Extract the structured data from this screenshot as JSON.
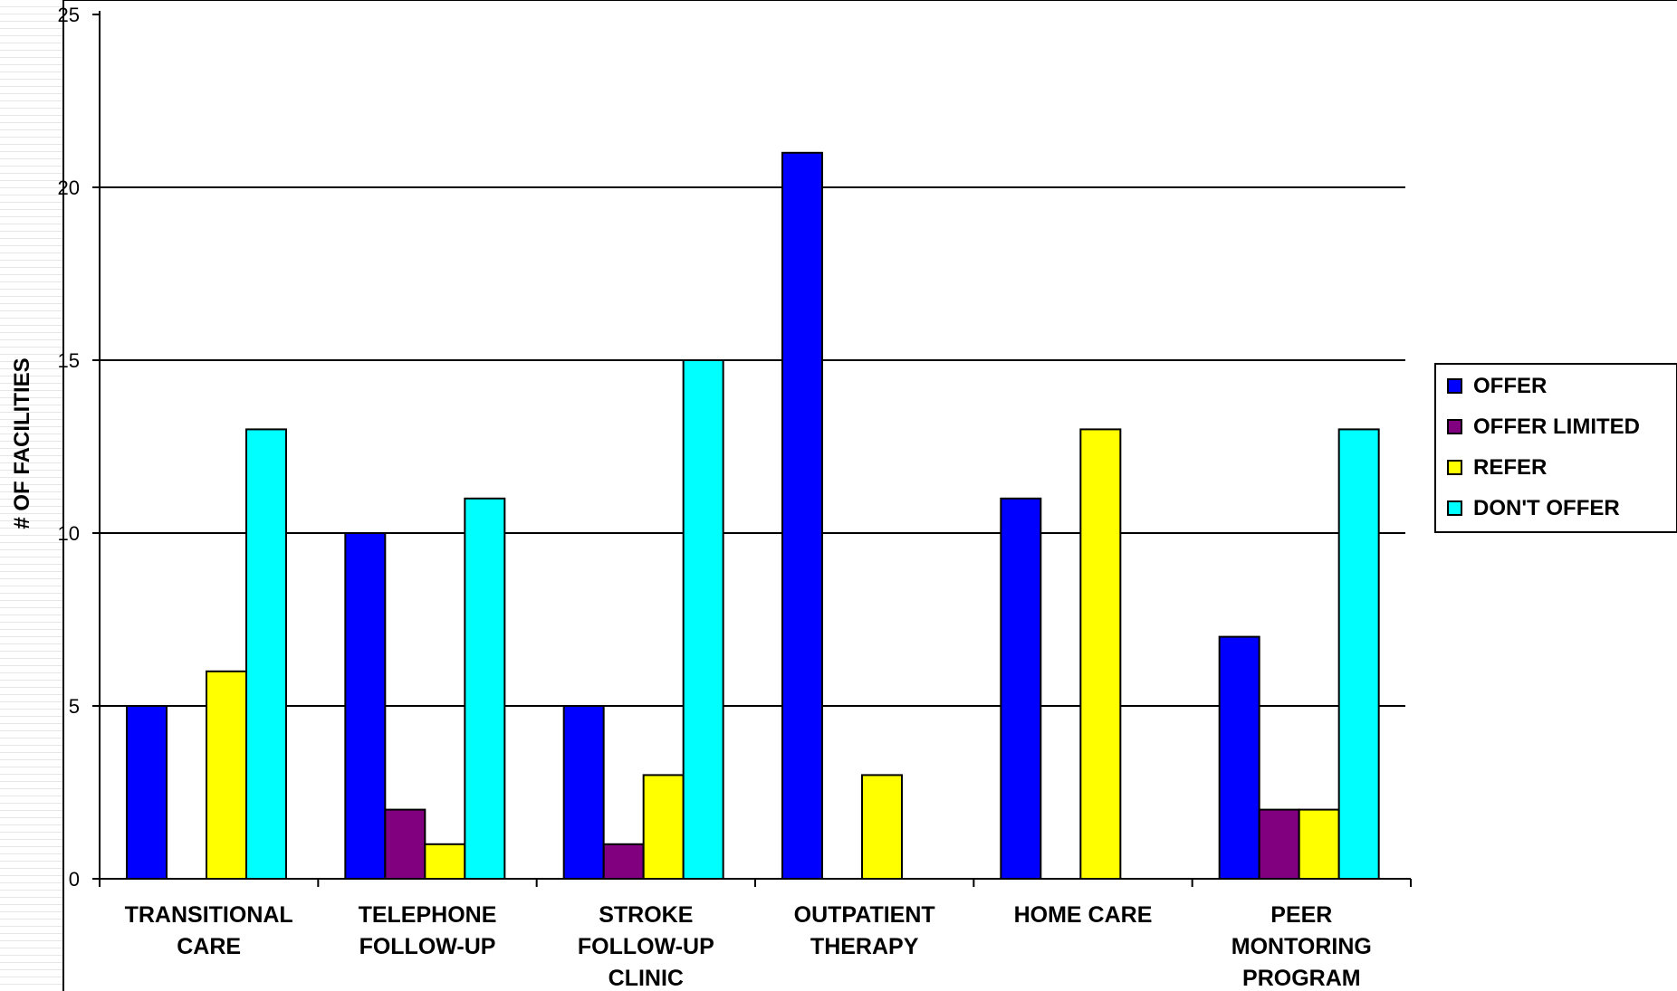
{
  "chart_data": {
    "type": "bar",
    "title": "",
    "xlabel": "",
    "ylabel": "# OF FACILITIES",
    "ylim": [
      0,
      25
    ],
    "yticks": [
      0,
      5,
      10,
      15,
      20,
      25
    ],
    "grid": true,
    "legend_position": "right",
    "categories": [
      [
        "TRANSITIONAL",
        "CARE"
      ],
      [
        "TELEPHONE",
        "FOLLOW-UP"
      ],
      [
        "STROKE",
        "FOLLOW-UP",
        "CLINIC"
      ],
      [
        "OUTPATIENT",
        "THERAPY"
      ],
      [
        "HOME CARE"
      ],
      [
        "PEER",
        "MONTORING",
        "PROGRAM"
      ]
    ],
    "series": [
      {
        "name": "OFFER",
        "color": "#0000ff",
        "values": [
          5,
          10,
          5,
          21,
          11,
          7
        ]
      },
      {
        "name": "OFFER LIMITED",
        "color": "#800080",
        "values": [
          0,
          2,
          1,
          0,
          0,
          2
        ]
      },
      {
        "name": "REFER",
        "color": "#ffff00",
        "values": [
          6,
          1,
          3,
          3,
          13,
          2
        ]
      },
      {
        "name": "DON'T OFFER",
        "color": "#00ffff",
        "values": [
          13,
          11,
          15,
          0,
          0,
          13
        ]
      }
    ]
  }
}
